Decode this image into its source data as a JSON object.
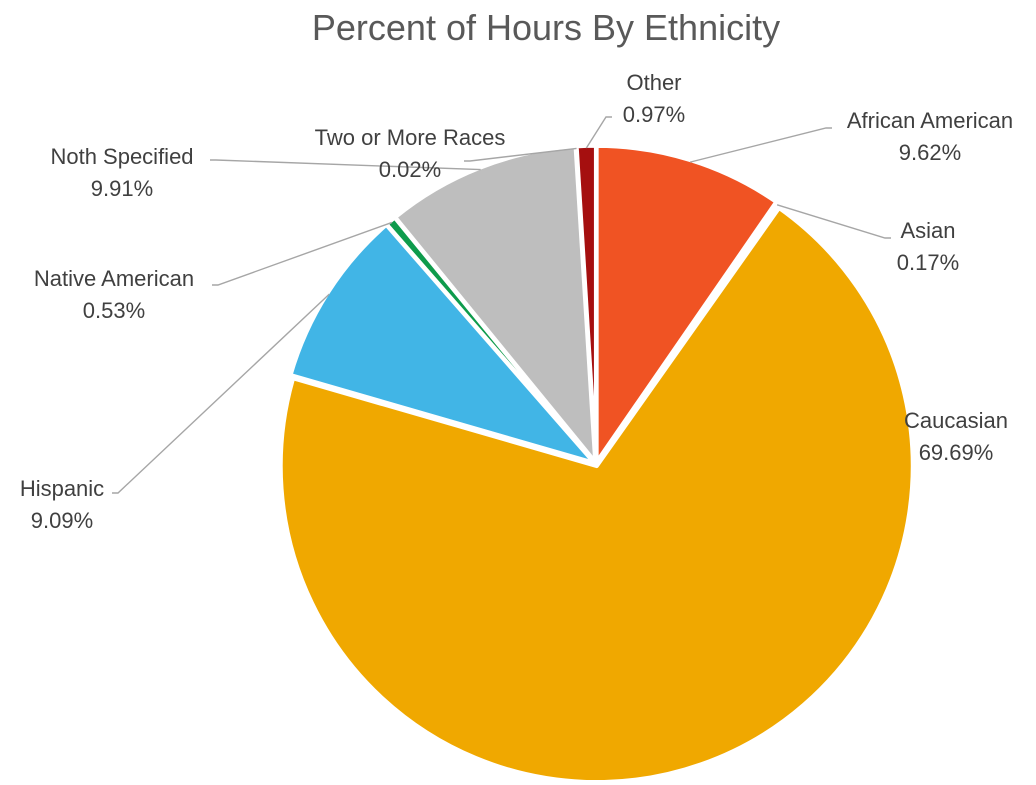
{
  "chart_data": {
    "type": "pie",
    "title": "Percent of Hours By Ethnicity",
    "slices": [
      {
        "label": "African American",
        "value": 9.62,
        "value_label": "9.62%",
        "color": "#F05323"
      },
      {
        "label": "Asian",
        "value": 0.17,
        "value_label": "0.17%",
        "color": "#5B9BD5"
      },
      {
        "label": "Caucasian",
        "value": 69.69,
        "value_label": "69.69%",
        "color": "#F0A800"
      },
      {
        "label": "Hispanic",
        "value": 9.09,
        "value_label": "9.09%",
        "color": "#41B5E6"
      },
      {
        "label": "Native American",
        "value": 0.53,
        "value_label": "0.53%",
        "color": "#0E9B4C"
      },
      {
        "label": "Noth Specified",
        "value": 9.91,
        "value_label": "9.91%",
        "color": "#BEBEBE"
      },
      {
        "label": "Two or More Races",
        "value": 0.02,
        "value_label": "0.02%",
        "color": "#7F7F7F"
      },
      {
        "label": "Other",
        "value": 0.97,
        "value_label": "0.97%",
        "color": "#A50F0F"
      }
    ],
    "legend": "none",
    "leader_line_color": "#A6A6A6"
  }
}
